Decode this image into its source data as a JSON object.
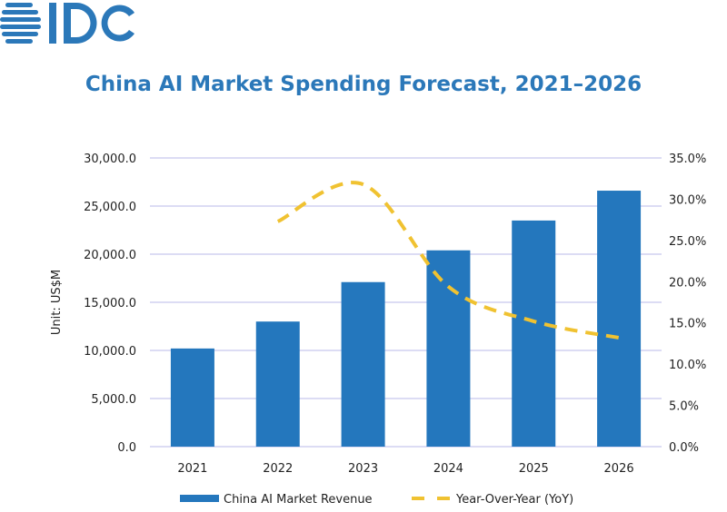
{
  "logo": {
    "text": "IDC",
    "color": "#2b78b9"
  },
  "chart_data": {
    "type": "bar+line",
    "title": "China AI Market Spending Forecast, 2021–2026",
    "ylabel": "Unit: US$M",
    "categories": [
      "2021",
      "2022",
      "2023",
      "2024",
      "2025",
      "2026"
    ],
    "ylim": [
      0,
      30000
    ],
    "yticks": [
      "0.0",
      "5,000.0",
      "10,000.0",
      "15,000.0",
      "20,000.0",
      "25,000.0",
      "30,000.0"
    ],
    "y2lim": [
      0,
      35
    ],
    "y2ticks": [
      "0.0%",
      "5.0%",
      "10.0%",
      "15.0%",
      "20.0%",
      "25.0%",
      "30.0%",
      "35.0%"
    ],
    "grid": true,
    "legend_position": "bottom",
    "series": [
      {
        "name": "China AI Market Revenue",
        "type": "bar",
        "axis": "left",
        "color": "#2477bd",
        "values": [
          10200,
          13000,
          17100,
          20400,
          23500,
          26600
        ]
      },
      {
        "name": "Year-Over-Year (YoY)",
        "type": "line",
        "style": "dashed",
        "smooth": true,
        "axis": "right",
        "color": "#f0c231",
        "values": [
          null,
          27.3,
          31.8,
          19.4,
          15.2,
          13.2
        ]
      }
    ]
  }
}
